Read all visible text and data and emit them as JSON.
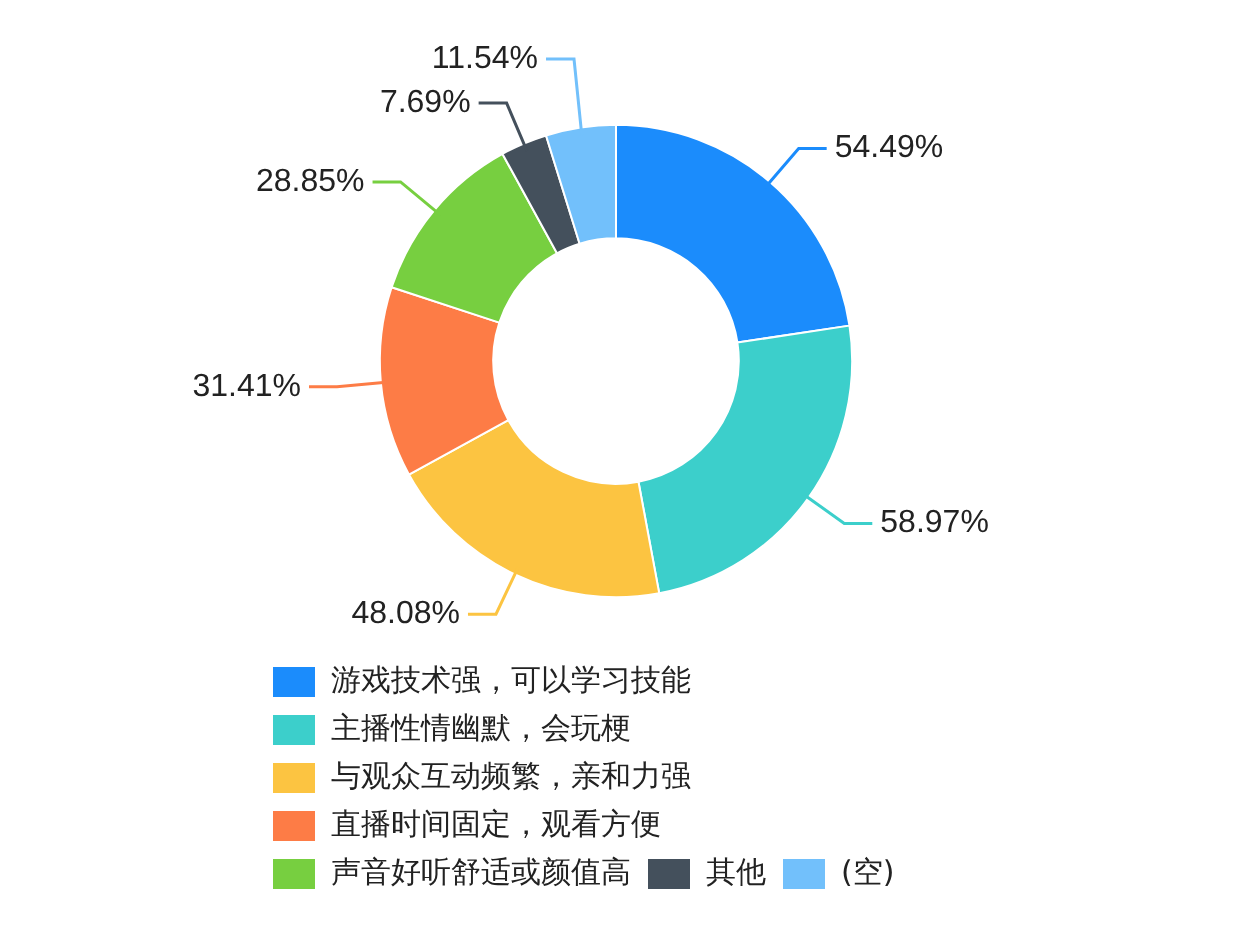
{
  "chart_data": {
    "type": "donut",
    "categories": [
      "游戏技术强，可以学习技能",
      "主播性情幽默，会玩梗",
      "与观众互动频繁，亲和力强",
      "直播时间固定，观看方便",
      "声音好听舒适或颜值高",
      "其他",
      "(空)"
    ],
    "values": [
      54.49,
      58.97,
      48.08,
      31.41,
      28.85,
      7.69,
      11.54
    ],
    "value_labels": [
      "54.49%",
      "58.97%",
      "48.08%",
      "31.41%",
      "28.85%",
      "7.69%",
      "11.54%"
    ],
    "colors": [
      "#1b8cfc",
      "#3ccfcb",
      "#fcc441",
      "#fd7c46",
      "#77cf40",
      "#44505c",
      "#72c0fb"
    ],
    "legend": "bottom"
  }
}
